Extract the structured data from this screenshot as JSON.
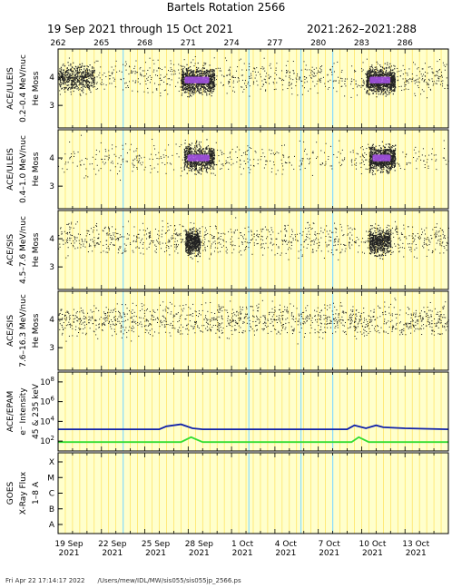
{
  "title": "Bartels Rotation 2566",
  "subtitle_dates": "19 Sep 2021 through 15 Oct 2021",
  "subtitle_doy": "2021:262–2021:288",
  "footer": {
    "timestamp": "Fri Apr 22 17:14:17 2022",
    "path": "/Users/mew/IDL/MW/sis055/sis055jp_2566.ps"
  },
  "chart_data": {
    "type": "scatter",
    "x_doy_start": 262,
    "x_doy_end": 289,
    "top_ticks": [
      "262",
      "265",
      "268",
      "271",
      "274",
      "277",
      "280",
      "283",
      "286"
    ],
    "top_tick_doy": [
      262,
      265,
      268,
      271,
      274,
      277,
      280,
      283,
      286
    ],
    "bottom_ticks": [
      {
        "doy": 262,
        "day": "19 Sep",
        "year": "2021"
      },
      {
        "doy": 265,
        "day": "22 Sep",
        "year": "2021"
      },
      {
        "doy": 268,
        "day": "25 Sep",
        "year": "2021"
      },
      {
        "doy": 271,
        "day": "28 Sep",
        "year": "2021"
      },
      {
        "doy": 274,
        "day": "1 Oct",
        "year": "2021"
      },
      {
        "doy": 277,
        "day": "4 Oct",
        "year": "2021"
      },
      {
        "doy": 280,
        "day": "7 Oct",
        "year": "2021"
      },
      {
        "doy": 283,
        "day": "10 Oct",
        "year": "2021"
      },
      {
        "doy": 286,
        "day": "13 Oct",
        "year": "2021"
      }
    ],
    "colors": {
      "background": "#ffffcc",
      "day_grid": "#ffdd44",
      "data_gap": "#88ddff",
      "density_low": "#222222",
      "density_high": "#aa55ee",
      "epam_high": "#1122aa",
      "epam_low": "#33dd33"
    },
    "panels": [
      {
        "id": "uleis-low",
        "instrument": "ACE/ULEIS",
        "energy": "0.2–0.4 MeV/nuc",
        "ylabel": "He Moss",
        "yticks": [
          "3",
          "4"
        ],
        "ytick_vals": [
          3,
          4
        ],
        "ylim": [
          2.2,
          5.0
        ],
        "enhancements": [
          {
            "start": 270.5,
            "end": 272.8,
            "level": 3.9,
            "intensity": 1.0
          },
          {
            "start": 283.3,
            "end": 285.3,
            "level": 3.9,
            "intensity": 1.0
          },
          {
            "start": 262.0,
            "end": 264.5,
            "level": 4.0,
            "intensity": 0.5
          }
        ],
        "background_density": 0.6
      },
      {
        "id": "uleis-high",
        "instrument": "ACE/ULEIS",
        "energy": "0.4–1.0 MeV/nuc",
        "ylabel": "He Moss",
        "yticks": [
          "3",
          "4"
        ],
        "ytick_vals": [
          3,
          4
        ],
        "ylim": [
          2.2,
          5.0
        ],
        "enhancements": [
          {
            "start": 270.7,
            "end": 272.8,
            "level": 4.0,
            "intensity": 0.8
          },
          {
            "start": 283.5,
            "end": 285.3,
            "level": 4.0,
            "intensity": 0.9
          }
        ],
        "background_density": 0.35
      },
      {
        "id": "sis-low",
        "instrument": "ACE/SIS",
        "energy": "4.5–7.6 MeV/nuc",
        "ylabel": "He Moss",
        "yticks": [
          "3",
          "4"
        ],
        "ytick_vals": [
          3,
          4
        ],
        "ylim": [
          2.2,
          5.0
        ],
        "enhancements": [
          {
            "start": 270.8,
            "end": 271.8,
            "level": 3.9,
            "intensity": 0.6
          },
          {
            "start": 283.5,
            "end": 285.0,
            "level": 3.9,
            "intensity": 0.6
          }
        ],
        "background_density": 0.7
      },
      {
        "id": "sis-high",
        "instrument": "ACE/SIS",
        "energy": "7.6–16.3 MeV/nuc",
        "ylabel": "He Moss",
        "yticks": [
          "3",
          "4"
        ],
        "ytick_vals": [
          3,
          4
        ],
        "ylim": [
          2.2,
          5.0
        ],
        "enhancements": [],
        "background_density": 0.9
      }
    ],
    "epam": {
      "instrument": "ACE/EPAM",
      "ylabel": "e⁻ Intensity",
      "energy": "45 & 235 keV",
      "ytick_exponents": [
        2,
        4,
        6,
        8
      ],
      "ylim_exp": [
        1,
        9
      ],
      "series": [
        {
          "color": "#1122aa",
          "points": [
            [
              262,
              3.2
            ],
            [
              266,
              3.2
            ],
            [
              269,
              3.2
            ],
            [
              269.5,
              3.5
            ],
            [
              270.5,
              3.7
            ],
            [
              271.3,
              3.3
            ],
            [
              272,
              3.2
            ],
            [
              277,
              3.2
            ],
            [
              282,
              3.2
            ],
            [
              282.5,
              3.6
            ],
            [
              283.3,
              3.3
            ],
            [
              284,
              3.6
            ],
            [
              284.5,
              3.4
            ],
            [
              286,
              3.3
            ],
            [
              289,
              3.2
            ]
          ]
        },
        {
          "color": "#33dd33",
          "points": [
            [
              262,
              1.9
            ],
            [
              270.5,
              1.9
            ],
            [
              271.2,
              2.4
            ],
            [
              272,
              1.9
            ],
            [
              282.3,
              1.9
            ],
            [
              282.8,
              2.4
            ],
            [
              283.5,
              1.9
            ],
            [
              289,
              1.9
            ]
          ]
        }
      ]
    },
    "goes": {
      "instrument": "GOES",
      "ylabel": "X-Ray Flux",
      "channel": "1–8 A",
      "yticks": [
        "A",
        "B",
        "C",
        "M",
        "X"
      ]
    }
  }
}
